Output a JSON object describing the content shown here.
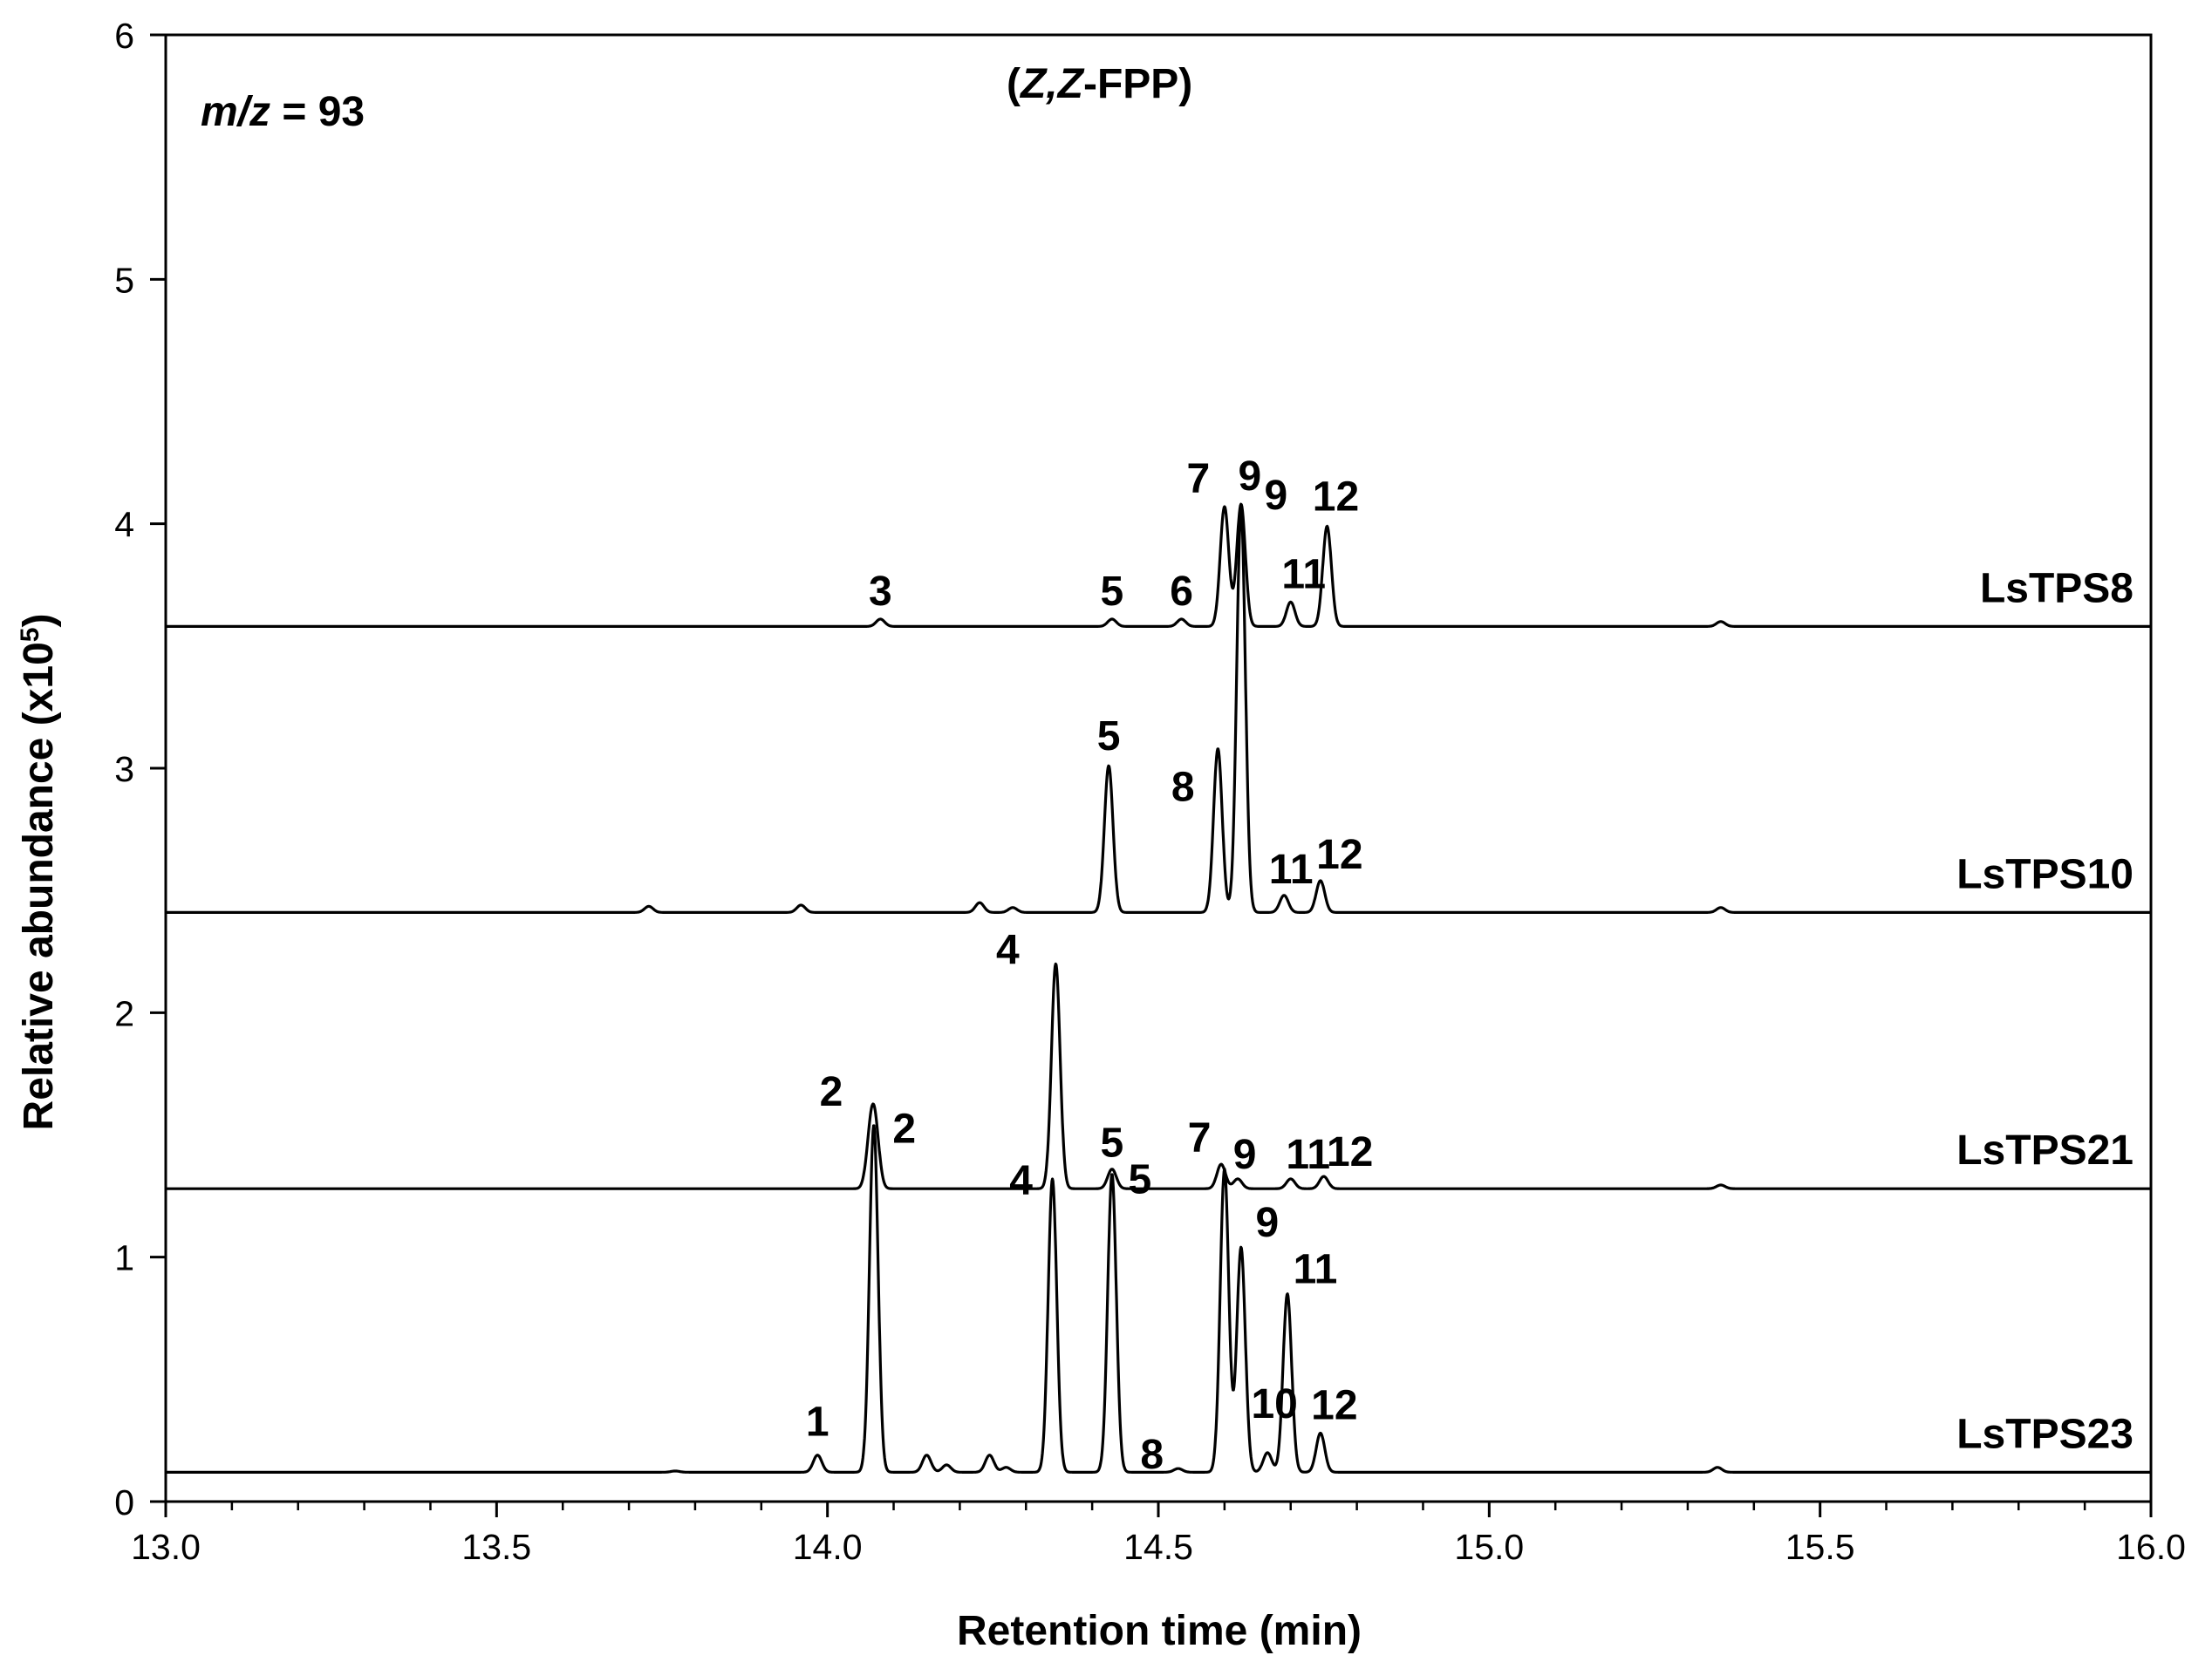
{
  "chart_data": {
    "type": "line",
    "xlabel": "Retention time (min)",
    "ylabel": {
      "main": "Relative abundance (x10",
      "sup": "5",
      "end": ")"
    },
    "xlim": [
      13.0,
      16.0
    ],
    "ylim": [
      0,
      6
    ],
    "x_ticks": [
      "13.0",
      "13.5",
      "14.0",
      "14.5",
      "15.0",
      "15.5",
      "16.0"
    ],
    "y_ticks": [
      "0",
      "1",
      "2",
      "3",
      "4",
      "5",
      "6"
    ],
    "x_tick_values": [
      13.0,
      13.5,
      14.0,
      14.5,
      15.0,
      15.5,
      16.0
    ],
    "y_tick_values": [
      0,
      1,
      2,
      3,
      4,
      5,
      6
    ],
    "grid": false,
    "annotations": {
      "mz": {
        "italic": "m/z",
        "rest": " = 93"
      },
      "substrate": {
        "open": "(",
        "italic": "Z,Z",
        "rest": "-FPP)"
      }
    },
    "series": [
      {
        "name": "LsTPS8",
        "baseline": 3.58,
        "x_start": 13.0,
        "x_end": 16.0,
        "peaks": [
          {
            "rt": 14.08,
            "height": 0.03,
            "label": "3"
          },
          {
            "rt": 14.43,
            "height": 0.03,
            "label": "5"
          },
          {
            "rt": 14.535,
            "height": 0.03,
            "label": "6"
          },
          {
            "rt": 14.6,
            "height": 0.49,
            "label": "7"
          },
          {
            "rt": 14.625,
            "height": 0.5,
            "label": "9"
          },
          {
            "rt": 14.7,
            "height": 0.1,
            "label": "11"
          },
          {
            "rt": 14.755,
            "height": 0.41,
            "label": "12"
          },
          {
            "rt": 15.35,
            "height": 0.02,
            "label": ""
          }
        ]
      },
      {
        "name": "LsTPS10",
        "baseline": 2.41,
        "x_start": 13.0,
        "x_end": 16.0,
        "peaks": [
          {
            "rt": 13.73,
            "height": 0.025,
            "label": ""
          },
          {
            "rt": 13.96,
            "height": 0.03,
            "label": ""
          },
          {
            "rt": 14.23,
            "height": 0.04,
            "label": ""
          },
          {
            "rt": 14.28,
            "height": 0.02,
            "label": ""
          },
          {
            "rt": 14.425,
            "height": 0.6,
            "label": "5"
          },
          {
            "rt": 14.59,
            "height": 0.67,
            "label": "8"
          },
          {
            "rt": 14.625,
            "height": 1.65,
            "label": "9"
          },
          {
            "rt": 14.69,
            "height": 0.07,
            "label": "11"
          },
          {
            "rt": 14.745,
            "height": 0.13,
            "label": "12"
          },
          {
            "rt": 15.35,
            "height": 0.02,
            "label": ""
          }
        ]
      },
      {
        "name": "LsTPS21",
        "baseline": 1.28,
        "x_start": 13.0,
        "x_end": 16.0,
        "peaks": [
          {
            "rt": 14.065,
            "height": 0.18,
            "label": "2"
          },
          {
            "rt": 14.072,
            "height": 0.22,
            "label": ""
          },
          {
            "rt": 14.345,
            "height": 0.92,
            "label": "4"
          },
          {
            "rt": 14.43,
            "height": 0.08,
            "label": "5"
          },
          {
            "rt": 14.595,
            "height": 0.1,
            "label": "7"
          },
          {
            "rt": 14.62,
            "height": 0.04,
            "label": "9"
          },
          {
            "rt": 14.7,
            "height": 0.04,
            "label": "11"
          },
          {
            "rt": 14.75,
            "height": 0.05,
            "label": "12"
          },
          {
            "rt": 15.35,
            "height": 0.015,
            "label": ""
          }
        ]
      },
      {
        "name": "LsTPS23",
        "baseline": 0.12,
        "x_start": 13.0,
        "x_end": 16.0,
        "peaks": [
          {
            "rt": 13.77,
            "height": 0.005,
            "label": ""
          },
          {
            "rt": 13.985,
            "height": 0.07,
            "label": "1"
          },
          {
            "rt": 14.07,
            "height": 1.42,
            "label": "2"
          },
          {
            "rt": 14.15,
            "height": 0.07,
            "label": ""
          },
          {
            "rt": 14.18,
            "height": 0.03,
            "label": ""
          },
          {
            "rt": 14.245,
            "height": 0.07,
            "label": ""
          },
          {
            "rt": 14.27,
            "height": 0.02,
            "label": ""
          },
          {
            "rt": 14.34,
            "height": 1.2,
            "label": "4"
          },
          {
            "rt": 14.43,
            "height": 1.22,
            "label": "5"
          },
          {
            "rt": 14.53,
            "height": 0.015,
            "label": "8"
          },
          {
            "rt": 14.6,
            "height": 1.24,
            "label": ""
          },
          {
            "rt": 14.625,
            "height": 0.92,
            "label": "9"
          },
          {
            "rt": 14.665,
            "height": 0.08,
            "label": "10"
          },
          {
            "rt": 14.695,
            "height": 0.73,
            "label": "11"
          },
          {
            "rt": 14.745,
            "height": 0.16,
            "label": "12"
          },
          {
            "rt": 15.345,
            "height": 0.02,
            "label": ""
          }
        ]
      }
    ]
  }
}
